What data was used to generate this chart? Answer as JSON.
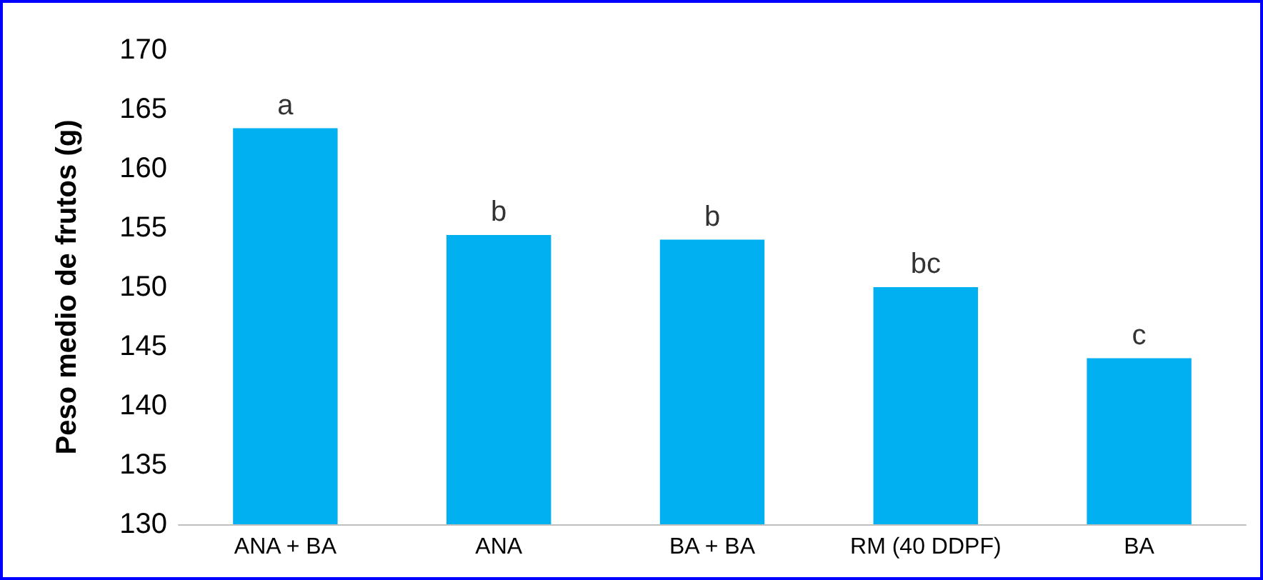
{
  "chart_data": {
    "type": "bar",
    "ylabel": "Peso medio de frutos (g)",
    "categories": [
      "ANA + BA",
      "ANA",
      "BA + BA",
      "RM (40 DDPF)",
      "BA"
    ],
    "values": [
      163.4,
      154.4,
      154.0,
      150.0,
      144.0
    ],
    "color": "#00b0f0",
    "ylim": [
      130,
      170
    ],
    "yticks": [
      130,
      135,
      140,
      145,
      150,
      155,
      160,
      165,
      170
    ],
    "grid": false,
    "annotations": [
      {
        "text": "a",
        "x": "ANA + BA",
        "y": 163.4
      },
      {
        "text": "b",
        "x": "ANA",
        "y": 154.4
      },
      {
        "text": "b",
        "x": "BA + BA",
        "y": 154.0
      },
      {
        "text": "bc",
        "x": "RM (40 DDPF)",
        "y": 150.0
      },
      {
        "text": "c",
        "x": "BA",
        "y": 144.0
      }
    ]
  }
}
